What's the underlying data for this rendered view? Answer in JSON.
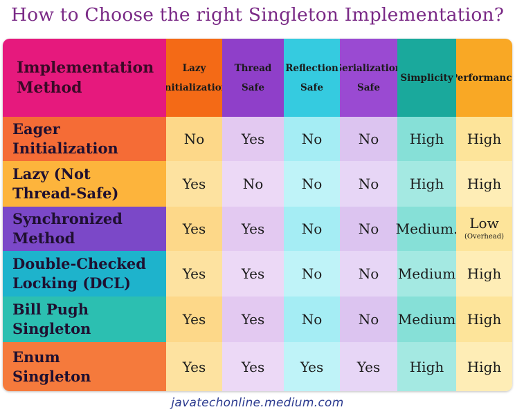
{
  "title": "How to Choose the right Singleton Implementation?",
  "footer": "javatechonline.medium.com",
  "table": {
    "corner_label": "Implementation Method",
    "columns": [
      {
        "label": "Lazy Initialization",
        "color": "#f46a16"
      },
      {
        "label": "Thread Safe",
        "color": "#8f3fc9"
      },
      {
        "label": "Reflection Safe",
        "color": "#35cbe0"
      },
      {
        "label": "Serialization Safe",
        "color": "#9a4ad2"
      },
      {
        "label": "Simplicity",
        "color": "#1aa99c"
      },
      {
        "label": "Performance",
        "color": "#f9a825"
      }
    ],
    "rows": [
      {
        "label": "Eager Initialization",
        "color": "#f56c36",
        "values": [
          "No",
          "Yes",
          "No",
          "No",
          "High",
          "High"
        ],
        "notes": [
          "",
          "",
          "",
          "",
          "",
          ""
        ]
      },
      {
        "label": "Lazy (Not\n      Thread-Safe)",
        "color": "#fdb43c",
        "values": [
          "Yes",
          "No",
          "No",
          "No",
          "High",
          "High"
        ],
        "notes": [
          "",
          "",
          "",
          "",
          "",
          ""
        ]
      },
      {
        "label": "Synchronized\nMethod",
        "color": "#7b48c8",
        "values": [
          "Yes",
          "Yes",
          "No",
          "No",
          "Medium.",
          "Low"
        ],
        "notes": [
          "",
          "",
          "",
          "",
          "",
          "(Overhead)"
        ]
      },
      {
        "label": "Double-Checked\nLocking (DCL)",
        "color": "#1eb3cc",
        "values": [
          "Yes",
          "Yes",
          "No",
          "No",
          "Medium",
          "High"
        ],
        "notes": [
          "",
          "",
          "",
          "",
          "",
          ""
        ]
      },
      {
        "label": "Bill Pugh\nSingleton",
        "color": "#2cbfb1",
        "values": [
          "Yes",
          "Yes",
          "No",
          "No",
          "Medium",
          "High"
        ],
        "notes": [
          "",
          "",
          "",
          "",
          "",
          ""
        ]
      },
      {
        "label": "Enum\nSingleton",
        "color": "#f57a3c",
        "values": [
          "Yes",
          "Yes",
          "Yes",
          "Yes",
          "High",
          "High"
        ],
        "notes": [
          "",
          "",
          "",
          "",
          "",
          ""
        ]
      }
    ],
    "column_body_colors": [
      [
        "#fdd889",
        "#fde2a0"
      ],
      [
        "#e3c9f1",
        "#ecd9f6"
      ],
      [
        "#a5edf4",
        "#bff3f8"
      ],
      [
        "#dcc4f0",
        "#e7d6f6"
      ],
      [
        "#86e0d7",
        "#a4e9e2"
      ],
      [
        "#fde49a",
        "#feedb6"
      ]
    ]
  }
}
